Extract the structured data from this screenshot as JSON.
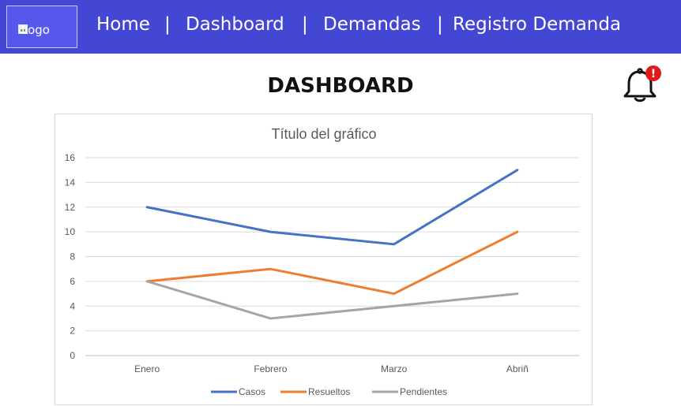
{
  "navbar": {
    "logo_alt": "Logo",
    "items": [
      {
        "label": "Home"
      },
      {
        "label": "Dashboard"
      },
      {
        "label": "Demandas"
      },
      {
        "label": "Registro Demanda"
      }
    ],
    "separator": "|",
    "background": "#4347d4"
  },
  "page": {
    "title": "DASHBOARD"
  },
  "notifications": {
    "icon": "bell-icon",
    "badge_symbol": "!",
    "badge_color": "#e01b1b"
  },
  "chart_data": {
    "type": "line",
    "title": "Título del gráfico",
    "categories": [
      "Enero",
      "Febrero",
      "Marzo",
      "Abriñ"
    ],
    "series": [
      {
        "name": "Casos",
        "values": [
          12,
          10,
          9,
          15
        ],
        "color": "#4472c4"
      },
      {
        "name": "Resueltos",
        "values": [
          6,
          7,
          5,
          10
        ],
        "color": "#ed7d31"
      },
      {
        "name": "Pendientes",
        "values": [
          6,
          3,
          4,
          5
        ],
        "color": "#a5a5a5"
      }
    ],
    "ylim": [
      0,
      16
    ],
    "yticks": [
      "0",
      "2",
      "4",
      "6",
      "8",
      "10",
      "12",
      "14",
      "16"
    ],
    "grid": true,
    "legend": "bottom"
  }
}
